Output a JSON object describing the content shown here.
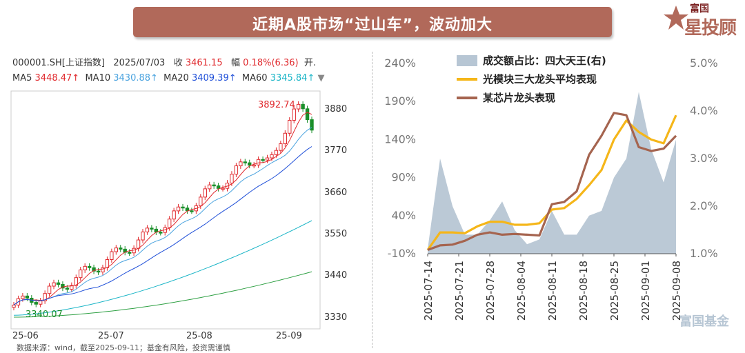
{
  "banner": {
    "title": "近期A股市场“过山车”，波动加大"
  },
  "brand": {
    "line1": "富国",
    "line2": "星投顾",
    "watermark": "富国基金"
  },
  "left_panel": {
    "info_line1": {
      "code": "000001.SH[上证指数]",
      "date": "2025/07/03",
      "close_label": "收",
      "close": "3461.15",
      "chg_label": "幅",
      "chg": "0.18%(6.36)",
      "open_label": "开."
    },
    "info_line2": [
      {
        "label": "MA5",
        "value": "3448.47↑",
        "color": "#e0282c"
      },
      {
        "label": "MA10",
        "value": "3430.88↑",
        "color": "#4aa3df"
      },
      {
        "label": "MA20",
        "value": "3409.39↑",
        "color": "#1f4fd8"
      },
      {
        "label": "MA60",
        "value": "3345.84↑",
        "color": "#1bb5c7"
      }
    ],
    "high_label": "3892.74",
    "low_label": "3340.07",
    "y_ticks": [
      "3880",
      "3770",
      "3660",
      "3550",
      "3440",
      "3330"
    ],
    "x_ticks": [
      "25-06",
      "25-07",
      "25-08",
      "25-09"
    ]
  },
  "footer": "数据来源：wind，截至2025-09-11；基金有风险，投资需谨慎",
  "chart_data": {
    "type": "line",
    "title": "",
    "x": [
      "2025-07-14",
      "2025-07-17",
      "2025-07-20",
      "2025-07-23",
      "2025-07-26",
      "2025-07-29",
      "2025-08-01",
      "2025-08-04",
      "2025-08-07",
      "2025-08-10",
      "2025-08-13",
      "2025-08-16",
      "2025-08-19",
      "2025-08-22",
      "2025-08-25",
      "2025-08-28",
      "2025-08-31",
      "2025-09-03",
      "2025-09-06",
      "2025-09-09",
      "2025-09-11"
    ],
    "x_tick_labels": [
      "2025-07-14",
      "2025-07-21",
      "2025-07-28",
      "2025-08-04",
      "2025-08-11",
      "2025-08-18",
      "2025-08-25",
      "2025-09-01",
      "2025-09-08"
    ],
    "left_axis": {
      "ticks": [
        "240%",
        "190%",
        "140%",
        "90%",
        "40%",
        "-10%"
      ],
      "range": [
        -10,
        240
      ]
    },
    "right_axis": {
      "ticks": [
        "5.0%",
        "4.0%",
        "3.0%",
        "2.0%",
        "1.0%"
      ],
      "range": [
        1.0,
        5.0
      ]
    },
    "legend_placement": "top-left",
    "series": [
      {
        "name": "成交额占比：四大天王(右)",
        "axis": "right",
        "kind": "area",
        "color": "#b7c6d4",
        "values": [
          1.1,
          3.0,
          2.0,
          1.4,
          1.4,
          1.7,
          2.1,
          1.5,
          1.2,
          1.3,
          1.9,
          1.4,
          1.4,
          1.8,
          1.9,
          2.6,
          3.0,
          4.4,
          3.2,
          2.5,
          3.4
        ]
      },
      {
        "name": "光模块三大龙头平均表现",
        "axis": "left",
        "kind": "line",
        "color": "#f5b619",
        "values": [
          -5,
          18,
          18,
          17,
          26,
          32,
          32,
          28,
          28,
          30,
          48,
          50,
          62,
          80,
          100,
          140,
          165,
          150,
          140,
          135,
          172
        ]
      },
      {
        "name": "某芯片龙头表现",
        "axis": "left",
        "kind": "line",
        "color": "#a5644f",
        "values": [
          -5,
          1,
          2,
          7,
          15,
          18,
          15,
          16,
          15,
          14,
          55,
          58,
          72,
          120,
          145,
          175,
          172,
          130,
          125,
          128,
          145
        ]
      }
    ]
  }
}
